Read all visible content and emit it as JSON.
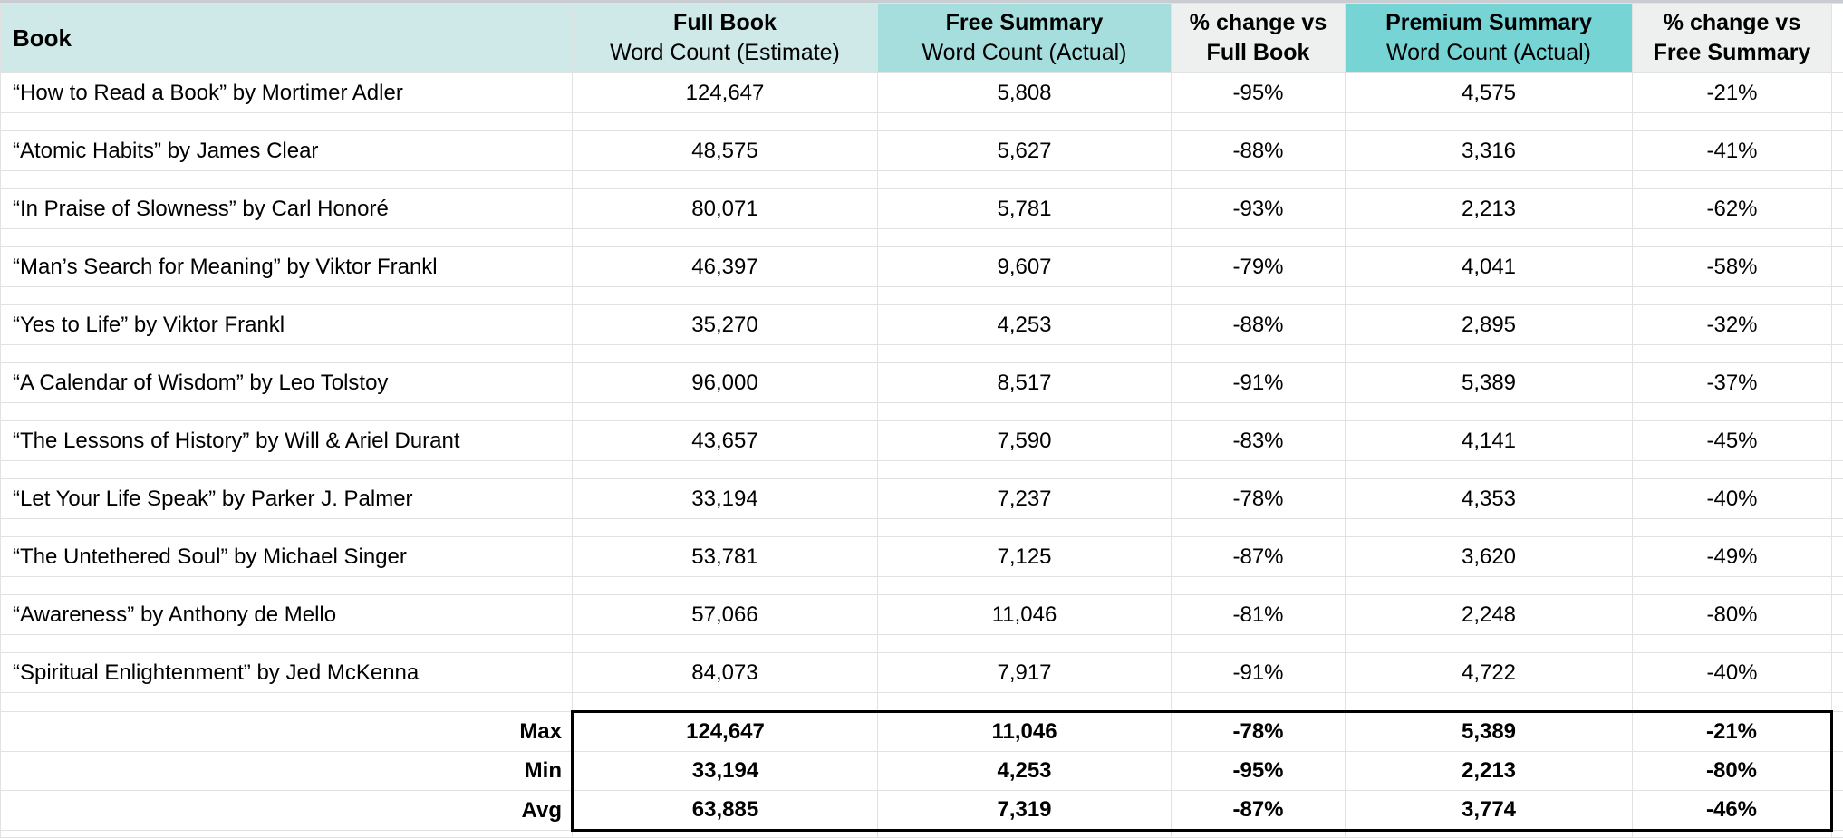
{
  "header": {
    "book": "Book",
    "full_book": {
      "title": "Full Book",
      "subtitle": "Word Count (Estimate)"
    },
    "free_summary": {
      "title": "Free Summary",
      "subtitle": "Word Count (Actual)"
    },
    "pct_vs_full": {
      "title": "% change vs",
      "subtitle": "Full Book"
    },
    "premium_summary": {
      "title": "Premium Summary",
      "subtitle": "Word Count (Actual)"
    },
    "pct_vs_free": {
      "title": "% change vs",
      "subtitle": "Free Summary"
    }
  },
  "rows": [
    {
      "book": "“How to Read a Book” by Mortimer Adler",
      "full": "124,647",
      "free": "5,808",
      "pct_full": "-95%",
      "premium": "4,575",
      "pct_free": "-21%"
    },
    {
      "book": "“Atomic Habits” by James Clear",
      "full": "48,575",
      "free": "5,627",
      "pct_full": "-88%",
      "premium": "3,316",
      "pct_free": "-41%"
    },
    {
      "book": "“In Praise of Slowness” by Carl Honoré",
      "full": "80,071",
      "free": "5,781",
      "pct_full": "-93%",
      "premium": "2,213",
      "pct_free": "-62%"
    },
    {
      "book": "“Man’s Search for Meaning” by Viktor Frankl",
      "full": "46,397",
      "free": "9,607",
      "pct_full": "-79%",
      "premium": "4,041",
      "pct_free": "-58%"
    },
    {
      "book": "“Yes to Life” by Viktor Frankl",
      "full": "35,270",
      "free": "4,253",
      "pct_full": "-88%",
      "premium": "2,895",
      "pct_free": "-32%"
    },
    {
      "book": "“A Calendar of Wisdom” by Leo Tolstoy",
      "full": "96,000",
      "free": "8,517",
      "pct_full": "-91%",
      "premium": "5,389",
      "pct_free": "-37%"
    },
    {
      "book": "“The Lessons of History” by Will & Ariel Durant",
      "full": "43,657",
      "free": "7,590",
      "pct_full": "-83%",
      "premium": "4,141",
      "pct_free": "-45%"
    },
    {
      "book": "“Let Your Life Speak” by Parker J. Palmer",
      "full": "33,194",
      "free": "7,237",
      "pct_full": "-78%",
      "premium": "4,353",
      "pct_free": "-40%"
    },
    {
      "book": "“The Untethered Soul” by Michael Singer",
      "full": "53,781",
      "free": "7,125",
      "pct_full": "-87%",
      "premium": "3,620",
      "pct_free": "-49%"
    },
    {
      "book": "“Awareness” by Anthony de Mello",
      "full": "57,066",
      "free": "11,046",
      "pct_full": "-81%",
      "premium": "2,248",
      "pct_free": "-80%"
    },
    {
      "book": "“Spiritual Enlightenment” by Jed McKenna",
      "full": "84,073",
      "free": "7,917",
      "pct_full": "-91%",
      "premium": "4,722",
      "pct_free": "-40%"
    }
  ],
  "summary": [
    {
      "label": "Max",
      "full": "124,647",
      "free": "11,046",
      "pct_full": "-78%",
      "premium": "5,389",
      "pct_free": "-21%"
    },
    {
      "label": "Min",
      "full": "33,194",
      "free": "4,253",
      "pct_full": "-95%",
      "premium": "2,213",
      "pct_free": "-80%"
    },
    {
      "label": "Avg",
      "full": "63,885",
      "free": "7,319",
      "pct_full": "-87%",
      "premium": "3,774",
      "pct_free": "-46%"
    }
  ],
  "colors": {
    "header_pale_teal": "#cfe9e8",
    "free_summary_teal": "#a6dedd",
    "premium_summary_teal": "#76d4d5",
    "pct_header_gray": "#eef0ef",
    "gridline": "#e2e2e2",
    "summary_box_border": "#000000",
    "top_strip_gray": "#c9ccd0"
  }
}
